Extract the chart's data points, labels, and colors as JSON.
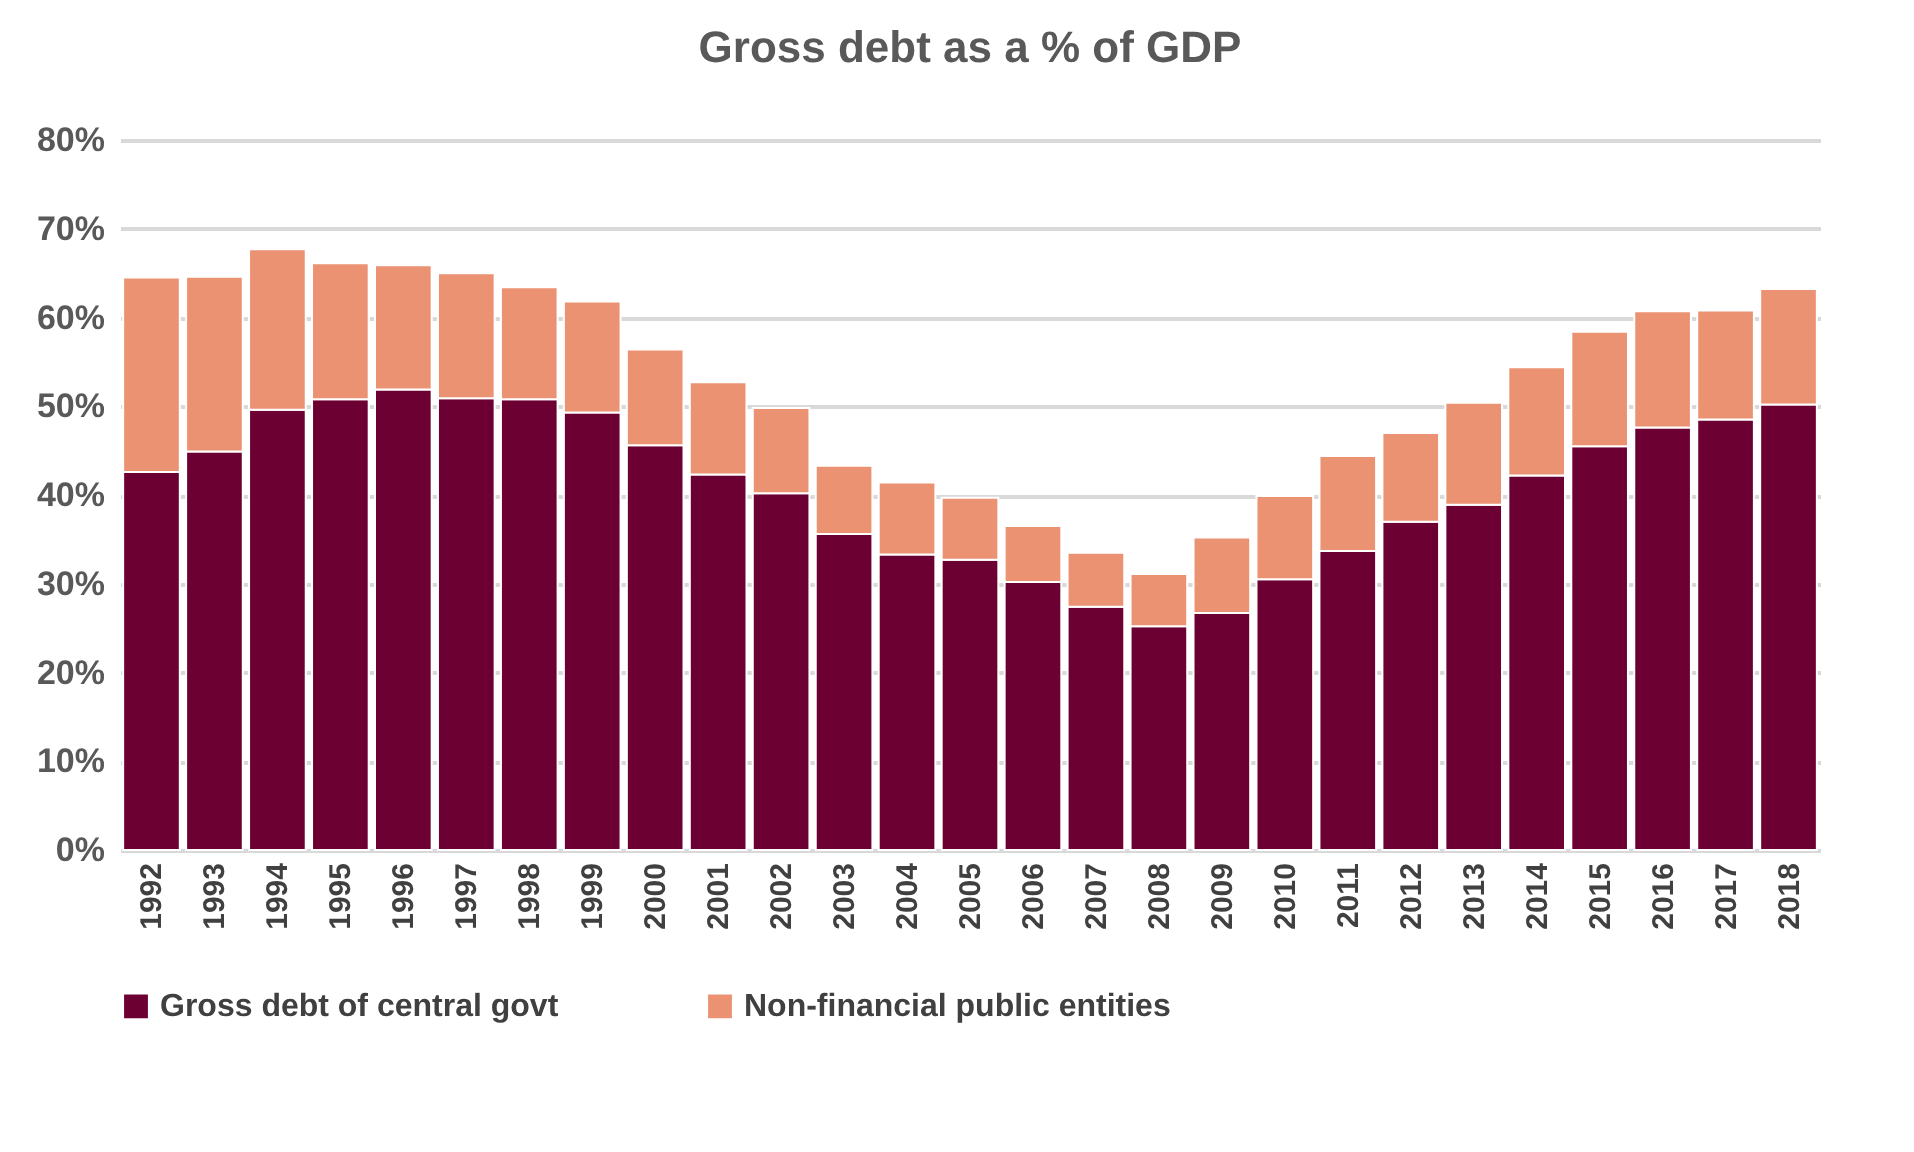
{
  "chart_data": {
    "type": "bar",
    "title": "Gross debt as a % of GDP",
    "stacked": true,
    "categories": [
      "1992",
      "1993",
      "1994",
      "1995",
      "1996",
      "1997",
      "1998",
      "1999",
      "2000",
      "2001",
      "2002",
      "2003",
      "2004",
      "2005",
      "2006",
      "2007",
      "2008",
      "2009",
      "2010",
      "2011",
      "2012",
      "2013",
      "2014",
      "2015",
      "2016",
      "2017",
      "2018"
    ],
    "series": [
      {
        "name": "Gross debt of central govt",
        "color": "#6d0032",
        "values": [
          42.6,
          44.9,
          49.6,
          50.8,
          51.9,
          50.9,
          50.8,
          49.3,
          45.6,
          42.3,
          40.2,
          35.6,
          33.3,
          32.7,
          30.2,
          27.4,
          25.2,
          26.7,
          30.5,
          33.7,
          37.0,
          38.9,
          42.2,
          45.5,
          47.6,
          48.5,
          50.2
        ]
      },
      {
        "name": "Non-financial public entities",
        "color": "#eb9272",
        "values": [
          21.9,
          19.7,
          18.1,
          15.3,
          14.0,
          14.1,
          12.6,
          12.5,
          10.8,
          10.4,
          9.6,
          7.7,
          8.1,
          7.0,
          6.3,
          6.1,
          5.9,
          8.5,
          9.4,
          10.7,
          10.0,
          11.5,
          12.2,
          12.9,
          13.1,
          12.3,
          13.0
        ]
      }
    ],
    "ylim": [
      0,
      80
    ],
    "yticks": [
      {
        "value": 0,
        "label": "0%"
      },
      {
        "value": 10,
        "label": "10%"
      },
      {
        "value": 20,
        "label": "20%"
      },
      {
        "value": 30,
        "label": "30%"
      },
      {
        "value": 40,
        "label": "40%"
      },
      {
        "value": 50,
        "label": "50%"
      },
      {
        "value": 60,
        "label": "60%"
      },
      {
        "value": 70,
        "label": "70%"
      },
      {
        "value": 80,
        "label": "80%"
      }
    ],
    "grid": "y",
    "legend": "bottom"
  }
}
